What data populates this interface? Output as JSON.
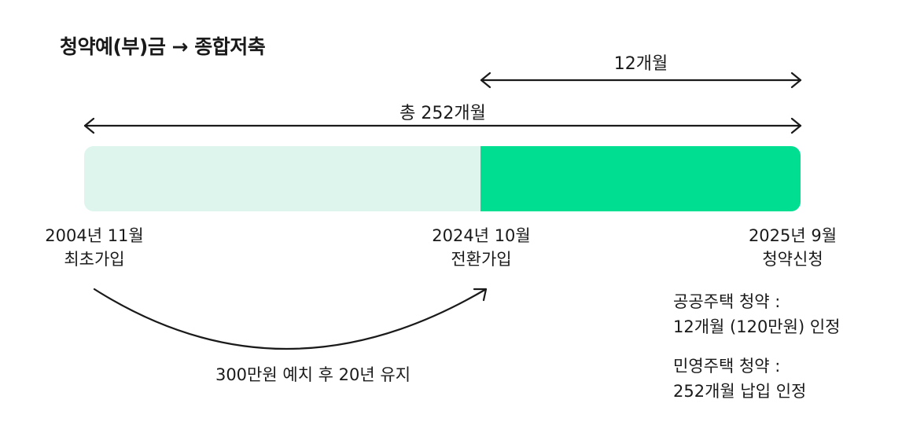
{
  "title": "청약예(부)금 → 종합저축",
  "spans": {
    "recent": {
      "label": "12개월",
      "months": 12
    },
    "total": {
      "label": "총 252개월",
      "months": 252
    }
  },
  "colors": {
    "bar_before": "#ddf5ec",
    "bar_after": "#00de92",
    "text": "#1a1a1a"
  },
  "milestones": [
    {
      "date": "2004년 11월",
      "event": "최초가입"
    },
    {
      "date": "2024년 10월",
      "event": "전환가입"
    },
    {
      "date": "2025년 9월",
      "event": "청약신청"
    }
  ],
  "transition_note": "300만원 예치 후 20년 유지",
  "notes": {
    "public": {
      "heading": "공공주택 청약 :",
      "detail": "12개월 (120만원) 인정"
    },
    "private": {
      "heading": "민영주택 청약 :",
      "detail": "252개월 납입 인정"
    }
  }
}
